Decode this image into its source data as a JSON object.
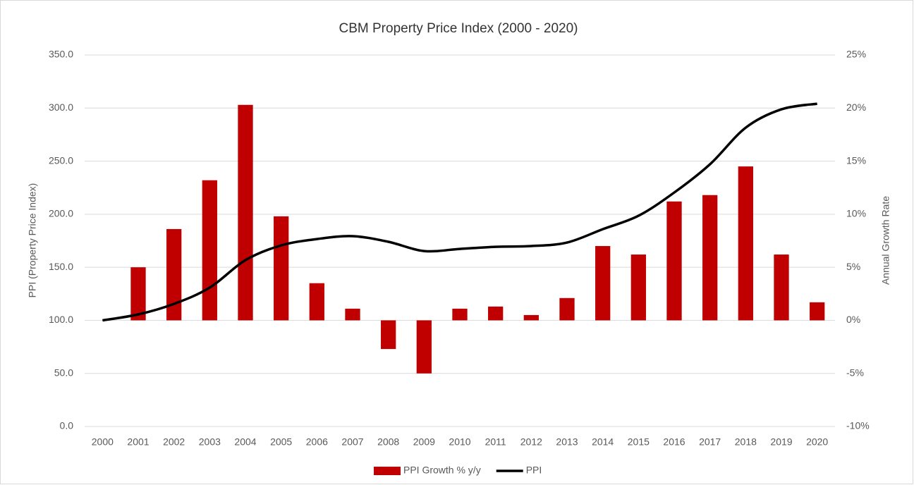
{
  "chart_data": {
    "type": "bar-line",
    "title": "CBM Property Price Index (2000 - 2020)",
    "y_label": "PPI (Property Price Index)",
    "y2_label": "Annual Growth Rate",
    "categories": [
      "2000",
      "2001",
      "2002",
      "2003",
      "2004",
      "2005",
      "2006",
      "2007",
      "2008",
      "2009",
      "2010",
      "2011",
      "2012",
      "2013",
      "2014",
      "2015",
      "2016",
      "2017",
      "2018",
      "2019",
      "2020"
    ],
    "series": [
      {
        "name": "PPI Growth % y/y",
        "type": "bar",
        "axis": "y2",
        "color": "#c00000",
        "values": [
          null,
          5.0,
          8.6,
          13.2,
          20.3,
          9.8,
          3.5,
          1.1,
          -2.7,
          -5.0,
          1.1,
          1.3,
          0.5,
          2.1,
          7.0,
          6.2,
          11.2,
          11.8,
          14.5,
          6.2,
          1.7
        ]
      },
      {
        "name": "PPI",
        "type": "line",
        "axis": "y",
        "color": "#000000",
        "values": [
          100,
          105.6,
          115.5,
          130.8,
          156.7,
          170.6,
          176.6,
          179.3,
          174.0,
          165.3,
          167.3,
          169.3,
          170.0,
          173.3,
          185.9,
          198.5,
          220.4,
          247.0,
          281.5,
          298.8,
          304.1
        ]
      }
    ],
    "ylim": [
      0,
      350
    ],
    "yticks": [
      {
        "value": 0,
        "label": "0.0"
      },
      {
        "value": 50,
        "label": "50.0"
      },
      {
        "value": 100,
        "label": "100.0"
      },
      {
        "value": 150,
        "label": "150.0"
      },
      {
        "value": 200,
        "label": "200.0"
      },
      {
        "value": 250,
        "label": "250.0"
      },
      {
        "value": 300,
        "label": "300.0"
      },
      {
        "value": 350,
        "label": "350.0"
      }
    ],
    "y2lim": [
      -10,
      25
    ],
    "y2ticks": [
      {
        "value": -10,
        "label": "-10%"
      },
      {
        "value": -5,
        "label": "-5%"
      },
      {
        "value": 0,
        "label": "0%"
      },
      {
        "value": 5,
        "label": "5%"
      },
      {
        "value": 10,
        "label": "10%"
      },
      {
        "value": 15,
        "label": "15%"
      },
      {
        "value": 20,
        "label": "20%"
      },
      {
        "value": 25,
        "label": "25%"
      }
    ],
    "grid": true,
    "legend": "bottom"
  }
}
